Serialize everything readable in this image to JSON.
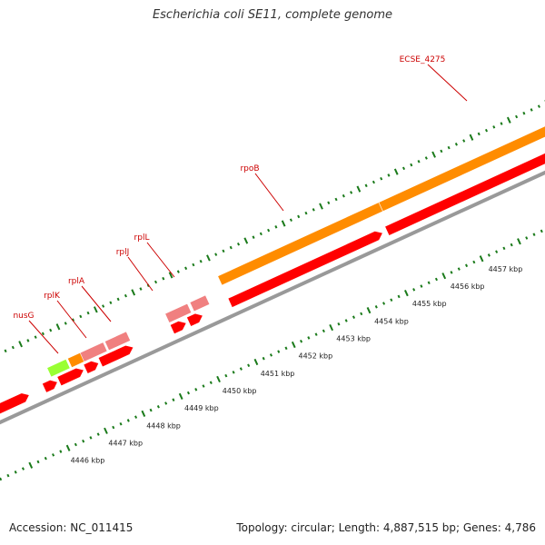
{
  "title": "Escherichia coli SE11, complete genome",
  "accession": "Accession: NC_011415",
  "summary": "Topology: circular; Length: 4,887,515 bp; Genes: 4,786",
  "colors": {
    "cds": "#ff0000",
    "gene": "#ff8c00",
    "rna": "#f08080",
    "highlight": "#99ff33",
    "backbone": "#999999",
    "tick": "#1a7a1a",
    "label": "#cc0000"
  },
  "gene_labels": [
    "nusG",
    "rplK",
    "rplA",
    "rplJ",
    "rplL",
    "rpoB",
    "ECSE_4275"
  ],
  "scale_labels": [
    "4446 kbp",
    "4447 kbp",
    "4448 kbp",
    "4449 kbp",
    "4450 kbp",
    "4451 kbp",
    "4452 kbp",
    "4453 kbp",
    "4454 kbp",
    "4455 kbp",
    "4456 kbp",
    "4457 kbp"
  ]
}
